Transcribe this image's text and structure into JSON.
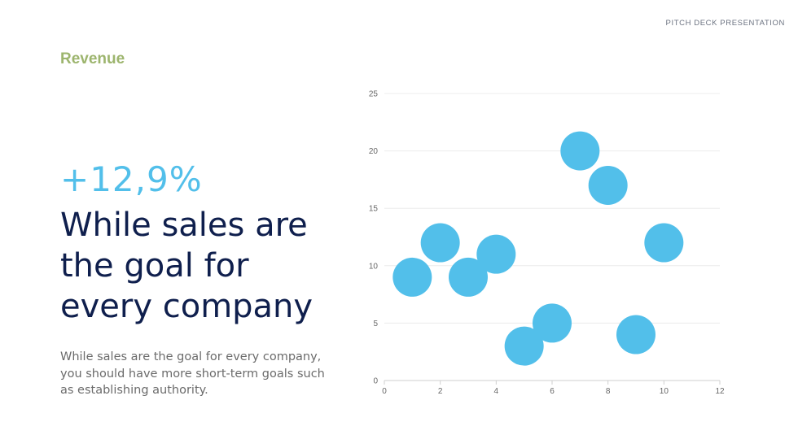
{
  "header": {
    "tag": "PITCH DECK PRESENTATION"
  },
  "content": {
    "section_title": "Revenue",
    "stat": "+12,9%",
    "headline": "While sales are the goal for every company",
    "body": "While sales are the goal for every company, you should have more short-term goals such as establishing authority."
  },
  "chart_data": {
    "type": "scatter",
    "title": "",
    "xlabel": "",
    "ylabel": "",
    "xlim": [
      0,
      12
    ],
    "ylim": [
      0,
      25
    ],
    "x_ticks": [
      0,
      2,
      4,
      6,
      8,
      10,
      12
    ],
    "y_ticks": [
      0,
      5,
      10,
      15,
      20,
      25
    ],
    "grid": "horizontal",
    "marker_color": "#52bfea",
    "points": [
      {
        "x": 1,
        "y": 9
      },
      {
        "x": 2,
        "y": 12
      },
      {
        "x": 3,
        "y": 9
      },
      {
        "x": 4,
        "y": 11
      },
      {
        "x": 5,
        "y": 3
      },
      {
        "x": 6,
        "y": 5
      },
      {
        "x": 7,
        "y": 20
      },
      {
        "x": 8,
        "y": 17
      },
      {
        "x": 9,
        "y": 4
      },
      {
        "x": 10,
        "y": 12
      }
    ]
  }
}
